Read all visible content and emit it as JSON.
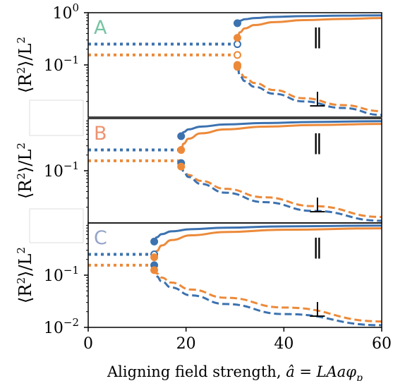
{
  "chart_data": {
    "type": "line",
    "xlabel": "Aligning field strength, â = LAaφ_p",
    "xlabel_parts": {
      "text": "Aligning field strength, ",
      "math": "â = LAaφ",
      "sub": "p"
    },
    "ylabel_parts": {
      "text": "⟨R",
      "sup": "2",
      "tail": "⟩/L",
      "sup2": "2"
    },
    "xlim": [
      0,
      60
    ],
    "ylim": [
      0.01,
      1.0
    ],
    "yscale": "log",
    "x_ticks": [
      0,
      20,
      40,
      60
    ],
    "y_ticks": [
      {
        "value": 1.0,
        "base": "10",
        "exp": "0"
      },
      {
        "value": 0.1,
        "base": "10",
        "exp": "−1"
      },
      {
        "value": 0.01,
        "base": "10",
        "exp": "−2"
      }
    ],
    "colors": {
      "blue": "#3c72b0",
      "orange": "#ec8a3a",
      "letter_A": "#76c4a4",
      "letter_B": "#ec9471",
      "letter_C": "#95a4c8"
    },
    "panels": [
      {
        "letter": "A",
        "transition": 30.5,
        "parallel_label": "∥",
        "perp_label": "⊥",
        "isotropic": {
          "blue": 0.25,
          "orange": 0.155
        },
        "series": [
          {
            "color": "blue",
            "component": "parallel",
            "style": "solid",
            "x": [
              30.5,
              31,
              32,
              34,
              38,
              44,
              52,
              60
            ],
            "y": [
              0.63,
              0.7,
              0.75,
              0.79,
              0.83,
              0.86,
              0.88,
              0.89
            ]
          },
          {
            "color": "orange",
            "component": "parallel",
            "style": "solid",
            "x": [
              30.5,
              31,
              32,
              34,
              38,
              44,
              52,
              60
            ],
            "y": [
              0.33,
              0.42,
              0.5,
              0.58,
              0.66,
              0.72,
              0.76,
              0.79
            ]
          },
          {
            "color": "orange",
            "component": "perpendicular",
            "style": "dashed",
            "x": [
              30.5,
              31,
              32,
              34,
              38,
              44,
              52,
              60
            ],
            "y": [
              0.1,
              0.072,
              0.058,
              0.045,
              0.033,
              0.023,
              0.017,
              0.013
            ]
          },
          {
            "color": "blue",
            "component": "perpendicular",
            "style": "dashed",
            "x": [
              30.5,
              31,
              32,
              34,
              38,
              44,
              52,
              60
            ],
            "y": [
              0.09,
              0.062,
              0.049,
              0.038,
              0.028,
              0.02,
              0.015,
              0.011
            ]
          }
        ],
        "points": [
          {
            "color": "blue",
            "x": 30.5,
            "y": 0.63,
            "filled": true
          },
          {
            "color": "blue",
            "x": 30.5,
            "y": 0.25,
            "filled": false
          },
          {
            "color": "orange",
            "x": 30.5,
            "y": 0.33,
            "filled": true
          },
          {
            "color": "orange",
            "x": 30.5,
            "y": 0.155,
            "filled": false
          },
          {
            "color": "orange",
            "x": 30.5,
            "y": 0.1,
            "filled": true
          },
          {
            "color": "orange",
            "x": 30.5,
            "y": 0.092,
            "filled": true
          }
        ]
      },
      {
        "letter": "B",
        "transition": 19,
        "parallel_label": "∥",
        "perp_label": "⊥",
        "isotropic": {
          "blue": 0.25,
          "orange": 0.155
        },
        "series": [
          {
            "color": "blue",
            "component": "parallel",
            "style": "solid",
            "x": [
              19,
              19.5,
              20.5,
              23,
              28,
              36,
              46,
              60
            ],
            "y": [
              0.46,
              0.55,
              0.62,
              0.7,
              0.77,
              0.82,
              0.86,
              0.89
            ]
          },
          {
            "color": "orange",
            "component": "parallel",
            "style": "solid",
            "x": [
              19,
              19.5,
              20.5,
              23,
              28,
              36,
              46,
              60
            ],
            "y": [
              0.25,
              0.33,
              0.41,
              0.52,
              0.62,
              0.7,
              0.75,
              0.79
            ]
          },
          {
            "color": "orange",
            "component": "perpendicular",
            "style": "dashed",
            "x": [
              19,
              19.5,
              20.5,
              23,
              28,
              36,
              46,
              60
            ],
            "y": [
              0.13,
              0.1,
              0.083,
              0.064,
              0.045,
              0.031,
              0.021,
              0.013
            ]
          },
          {
            "color": "blue",
            "component": "perpendicular",
            "style": "dashed",
            "x": [
              19,
              19.5,
              20.5,
              23,
              28,
              36,
              46,
              60
            ],
            "y": [
              0.13,
              0.095,
              0.076,
              0.056,
              0.038,
              0.025,
              0.017,
              0.011
            ]
          }
        ],
        "points": [
          {
            "color": "blue",
            "x": 19,
            "y": 0.46,
            "filled": true
          },
          {
            "color": "orange",
            "x": 19,
            "y": 0.25,
            "filled": true
          },
          {
            "color": "blue",
            "x": 19,
            "y": 0.14,
            "filled": true
          },
          {
            "color": "orange",
            "x": 19,
            "y": 0.12,
            "filled": true
          }
        ]
      },
      {
        "letter": "C",
        "transition": 13.5,
        "parallel_label": "∥",
        "perp_label": "⊥",
        "isotropic": {
          "blue": 0.25,
          "orange": 0.155
        },
        "series": [
          {
            "color": "blue",
            "component": "parallel",
            "style": "solid",
            "x": [
              13.5,
              14,
              15,
              17,
              21,
              28,
              40,
              60
            ],
            "y": [
              0.44,
              0.53,
              0.61,
              0.69,
              0.76,
              0.81,
              0.86,
              0.89
            ]
          },
          {
            "color": "orange",
            "component": "parallel",
            "style": "solid",
            "x": [
              13.5,
              14,
              15,
              17,
              21,
              28,
              40,
              60
            ],
            "y": [
              0.22,
              0.29,
              0.37,
              0.47,
              0.58,
              0.67,
              0.74,
              0.79
            ]
          },
          {
            "color": "orange",
            "component": "perpendicular",
            "style": "dashed",
            "x": [
              13.5,
              14,
              15,
              17,
              21,
              28,
              40,
              60
            ],
            "y": [
              0.13,
              0.108,
              0.09,
              0.072,
              0.053,
              0.037,
              0.024,
              0.013
            ]
          },
          {
            "color": "blue",
            "component": "perpendicular",
            "style": "dashed",
            "x": [
              13.5,
              14,
              15,
              17,
              21,
              28,
              40,
              60
            ],
            "y": [
              0.15,
              0.095,
              0.076,
              0.058,
              0.041,
              0.028,
              0.018,
              0.011
            ]
          }
        ],
        "points": [
          {
            "color": "blue",
            "x": 13.5,
            "y": 0.44,
            "filled": true
          },
          {
            "color": "blue",
            "x": 13.5,
            "y": 0.25,
            "filled": false
          },
          {
            "color": "orange",
            "x": 13.5,
            "y": 0.22,
            "filled": true
          },
          {
            "color": "blue",
            "x": 13.5,
            "y": 0.155,
            "filled": true
          },
          {
            "color": "orange",
            "x": 13.5,
            "y": 0.125,
            "filled": true
          }
        ]
      }
    ]
  }
}
